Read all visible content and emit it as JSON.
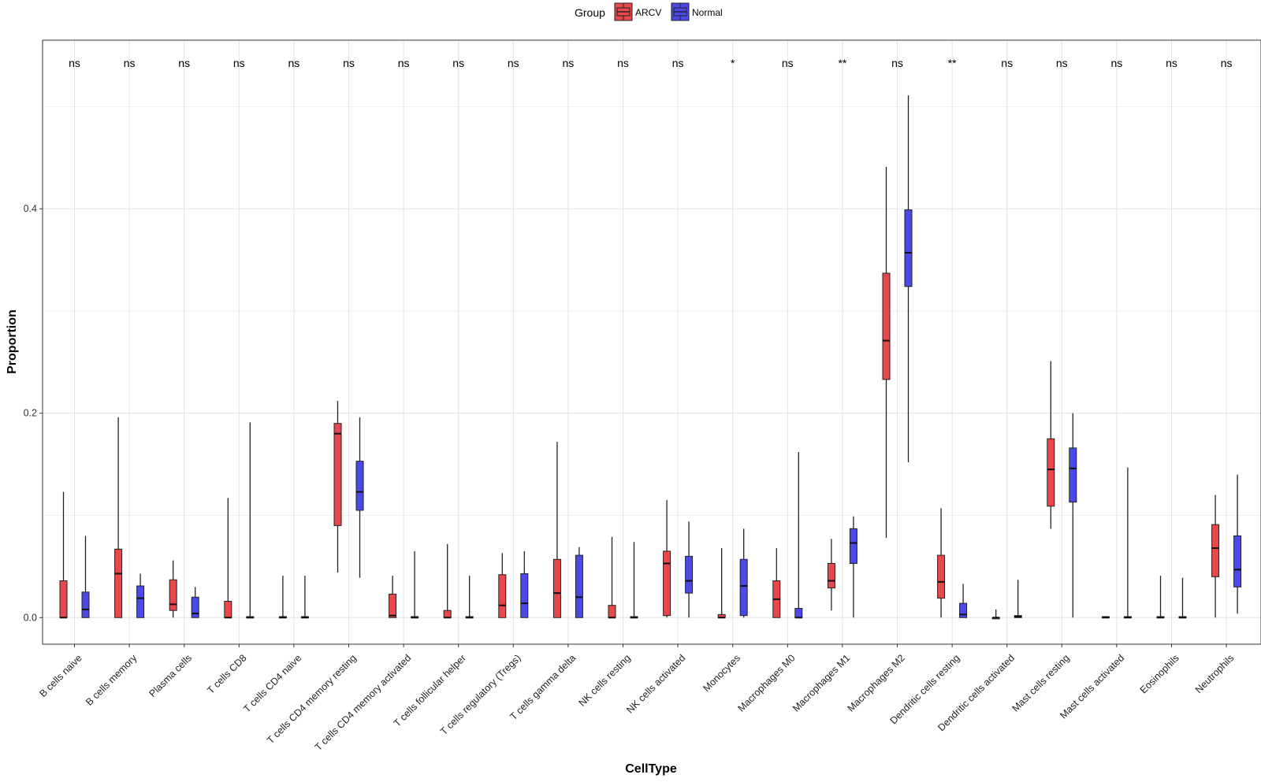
{
  "chart_data": {
    "type": "boxplot",
    "title": "",
    "xlabel": "CellType",
    "ylabel": "Proportion",
    "ylim": [
      -0.026,
      0.565
    ],
    "y_ticks": [
      0.0,
      0.2,
      0.4
    ],
    "y_tick_labels": [
      "0.0",
      "0.2",
      "0.4"
    ],
    "y_minor_gridlines": [
      0.1,
      0.3,
      0.5
    ],
    "grid": true,
    "legend": {
      "title": "Group",
      "position": "top",
      "entries": [
        {
          "name": "ARCV",
          "color": "#e8474b"
        },
        {
          "name": "Normal",
          "color": "#4a4ae8"
        }
      ]
    },
    "categories": [
      "B cells naive",
      "B cells memory",
      "Plasma cells",
      "T cells CD8",
      "T cells CD4 naive",
      "T cells CD4 memory resting",
      "T cells CD4 memory activated",
      "T cells follicular helper",
      "T cells regulatory (Tregs)",
      "T cells gamma delta",
      "NK cells resting",
      "NK cells activated",
      "Monocytes",
      "Macrophages M0",
      "Macrophages M1",
      "Macrophages M2",
      "Dendritic cells resting",
      "Dendritic cells activated",
      "Mast cells resting",
      "Mast cells activated",
      "Eosinophils",
      "Neutrophils"
    ],
    "significance": [
      "ns",
      "ns",
      "ns",
      "ns",
      "ns",
      "ns",
      "ns",
      "ns",
      "ns",
      "ns",
      "ns",
      "ns",
      "*",
      "ns",
      "**",
      "ns",
      "**",
      "ns",
      "ns",
      "ns",
      "ns",
      "ns"
    ],
    "series": [
      {
        "name": "ARCV",
        "boxes": [
          {
            "min": 0.0,
            "q1": 0.0,
            "median": 0.0,
            "q3": 0.036,
            "max": 0.123
          },
          {
            "min": 0.0,
            "q1": 0.0,
            "median": 0.043,
            "q3": 0.067,
            "max": 0.196
          },
          {
            "min": 0.0,
            "q1": 0.007,
            "median": 0.013,
            "q3": 0.037,
            "max": 0.056
          },
          {
            "min": 0.0,
            "q1": 0.0,
            "median": 0.0,
            "q3": 0.016,
            "max": 0.117
          },
          {
            "min": 0.0,
            "q1": 0.0,
            "median": 0.0,
            "q3": 0.001,
            "max": 0.041
          },
          {
            "min": 0.044,
            "q1": 0.09,
            "median": 0.18,
            "q3": 0.19,
            "max": 0.212
          },
          {
            "min": 0.0,
            "q1": 0.0,
            "median": 0.002,
            "q3": 0.023,
            "max": 0.041
          },
          {
            "min": 0.0,
            "q1": 0.0,
            "median": 0.0,
            "q3": 0.007,
            "max": 0.072
          },
          {
            "min": 0.0,
            "q1": 0.0,
            "median": 0.012,
            "q3": 0.042,
            "max": 0.063
          },
          {
            "min": 0.0,
            "q1": 0.0,
            "median": 0.024,
            "q3": 0.057,
            "max": 0.172
          },
          {
            "min": 0.0,
            "q1": 0.0,
            "median": 0.0,
            "q3": 0.012,
            "max": 0.079
          },
          {
            "min": 0.0,
            "q1": 0.002,
            "median": 0.053,
            "q3": 0.065,
            "max": 0.115
          },
          {
            "min": 0.0,
            "q1": 0.0,
            "median": 0.0,
            "q3": 0.003,
            "max": 0.068
          },
          {
            "min": 0.0,
            "q1": 0.0,
            "median": 0.018,
            "q3": 0.036,
            "max": 0.068
          },
          {
            "min": 0.007,
            "q1": 0.029,
            "median": 0.036,
            "q3": 0.053,
            "max": 0.077
          },
          {
            "min": 0.078,
            "q1": 0.233,
            "median": 0.271,
            "q3": 0.337,
            "max": 0.441
          },
          {
            "min": 0.0,
            "q1": 0.019,
            "median": 0.035,
            "q3": 0.061,
            "max": 0.107
          },
          {
            "min": 0.0,
            "q1": 0.0,
            "median": 0.0,
            "q3": 0.0,
            "max": 0.008
          },
          {
            "min": 0.087,
            "q1": 0.109,
            "median": 0.145,
            "q3": 0.175,
            "max": 0.251
          },
          {
            "min": 0.0,
            "q1": 0.0,
            "median": 0.0,
            "q3": 0.001,
            "max": 0.001
          },
          {
            "min": 0.0,
            "q1": 0.0,
            "median": 0.0,
            "q3": 0.001,
            "max": 0.041
          },
          {
            "min": 0.0,
            "q1": 0.04,
            "median": 0.068,
            "q3": 0.091,
            "max": 0.12
          }
        ]
      },
      {
        "name": "Normal",
        "boxes": [
          {
            "min": 0.0,
            "q1": 0.0,
            "median": 0.008,
            "q3": 0.025,
            "max": 0.08
          },
          {
            "min": 0.0,
            "q1": 0.0,
            "median": 0.019,
            "q3": 0.031,
            "max": 0.043
          },
          {
            "min": 0.0,
            "q1": 0.0,
            "median": 0.004,
            "q3": 0.02,
            "max": 0.03
          },
          {
            "min": 0.0,
            "q1": 0.0,
            "median": 0.0,
            "q3": 0.001,
            "max": 0.191
          },
          {
            "min": 0.0,
            "q1": 0.0,
            "median": 0.0,
            "q3": 0.001,
            "max": 0.041
          },
          {
            "min": 0.039,
            "q1": 0.105,
            "median": 0.123,
            "q3": 0.153,
            "max": 0.196
          },
          {
            "min": 0.0,
            "q1": 0.0,
            "median": 0.0,
            "q3": 0.001,
            "max": 0.065
          },
          {
            "min": 0.0,
            "q1": 0.0,
            "median": 0.0,
            "q3": 0.001,
            "max": 0.041
          },
          {
            "min": 0.0,
            "q1": 0.0,
            "median": 0.014,
            "q3": 0.043,
            "max": 0.065
          },
          {
            "min": 0.0,
            "q1": 0.0,
            "median": 0.02,
            "q3": 0.061,
            "max": 0.069
          },
          {
            "min": 0.0,
            "q1": 0.0,
            "median": 0.0,
            "q3": 0.001,
            "max": 0.074
          },
          {
            "min": 0.0,
            "q1": 0.024,
            "median": 0.036,
            "q3": 0.06,
            "max": 0.094
          },
          {
            "min": 0.0,
            "q1": 0.002,
            "median": 0.031,
            "q3": 0.057,
            "max": 0.087
          },
          {
            "min": 0.0,
            "q1": 0.0,
            "median": 0.0,
            "q3": 0.009,
            "max": 0.162
          },
          {
            "min": 0.0,
            "q1": 0.053,
            "median": 0.073,
            "q3": 0.087,
            "max": 0.099
          },
          {
            "min": 0.152,
            "q1": 0.324,
            "median": 0.357,
            "q3": 0.399,
            "max": 0.511
          },
          {
            "min": 0.0,
            "q1": 0.0,
            "median": 0.003,
            "q3": 0.014,
            "max": 0.033
          },
          {
            "min": 0.0,
            "q1": 0.0,
            "median": 0.001,
            "q3": 0.002,
            "max": 0.037
          },
          {
            "min": 0.0,
            "q1": 0.113,
            "median": 0.146,
            "q3": 0.166,
            "max": 0.2
          },
          {
            "min": 0.0,
            "q1": 0.0,
            "median": 0.0,
            "q3": 0.001,
            "max": 0.147
          },
          {
            "min": 0.0,
            "q1": 0.0,
            "median": 0.0,
            "q3": 0.001,
            "max": 0.039
          },
          {
            "min": 0.004,
            "q1": 0.03,
            "median": 0.047,
            "q3": 0.08,
            "max": 0.14
          }
        ]
      }
    ]
  }
}
